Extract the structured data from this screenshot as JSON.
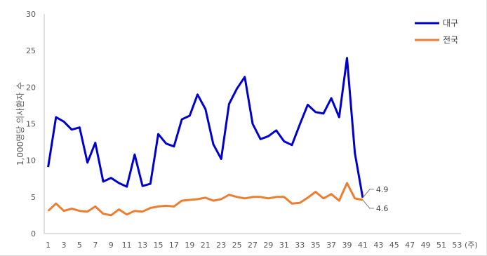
{
  "chart_data": {
    "type": "line",
    "title": "",
    "xlabel": "(주)",
    "ylabel": "1,000명당 의사환자 수",
    "ylim": [
      0,
      30
    ],
    "yticks": [
      0,
      5,
      10,
      15,
      20,
      25,
      30
    ],
    "xlim": [
      1,
      53
    ],
    "xticks": [
      1,
      3,
      5,
      7,
      9,
      11,
      13,
      15,
      17,
      19,
      21,
      23,
      25,
      27,
      29,
      31,
      33,
      35,
      37,
      39,
      41,
      43,
      45,
      47,
      49,
      51,
      53
    ],
    "legend_position": "top-right",
    "series": [
      {
        "name": "대구",
        "color": "#0000cc",
        "x": [
          1,
          2,
          3,
          4,
          5,
          6,
          7,
          8,
          9,
          10,
          11,
          12,
          13,
          14,
          15,
          16,
          17,
          18,
          19,
          20,
          21,
          22,
          23,
          24,
          25,
          26,
          27,
          28,
          29,
          30,
          31,
          32,
          33,
          34,
          35,
          36,
          37,
          38,
          39,
          40,
          41
        ],
        "values": [
          9.1,
          15.9,
          15.3,
          14.2,
          14.5,
          9.7,
          12.4,
          7.1,
          7.6,
          6.9,
          6.4,
          10.8,
          6.5,
          6.8,
          13.6,
          12.3,
          11.9,
          15.6,
          16.1,
          19.0,
          17.0,
          12.2,
          10.2,
          17.7,
          19.8,
          21.4,
          15.0,
          12.9,
          13.3,
          14.1,
          12.6,
          12.1,
          14.9,
          17.6,
          16.6,
          16.4,
          18.5,
          15.9,
          24.0,
          11.0,
          4.9
        ]
      },
      {
        "name": "전국",
        "color": "#ed7d31",
        "x": [
          1,
          2,
          3,
          4,
          5,
          6,
          7,
          8,
          9,
          10,
          11,
          12,
          13,
          14,
          15,
          16,
          17,
          18,
          19,
          20,
          21,
          22,
          23,
          24,
          25,
          26,
          27,
          28,
          29,
          30,
          31,
          32,
          33,
          34,
          35,
          36,
          37,
          38,
          39,
          40,
          41
        ],
        "values": [
          3.1,
          4.1,
          3.1,
          3.4,
          3.1,
          3.0,
          3.7,
          2.7,
          2.5,
          3.3,
          2.6,
          3.1,
          3.0,
          3.5,
          3.7,
          3.8,
          3.7,
          4.5,
          4.6,
          4.7,
          4.9,
          4.5,
          4.7,
          5.3,
          5.0,
          4.8,
          5.0,
          5.0,
          4.8,
          5.0,
          5.0,
          4.1,
          4.2,
          4.9,
          5.7,
          4.8,
          5.4,
          4.5,
          6.9,
          4.8,
          4.6
        ]
      }
    ],
    "annotations": [
      {
        "text": "4.9",
        "series": "대구",
        "x": 41,
        "y": 4.9
      },
      {
        "text": "4.6",
        "series": "전국",
        "x": 41,
        "y": 4.6
      }
    ],
    "grid": false
  }
}
